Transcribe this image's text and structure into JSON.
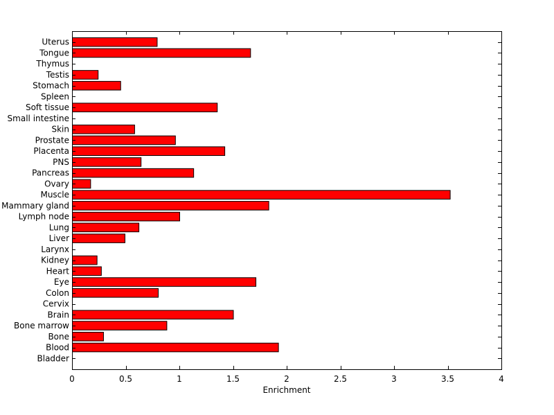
{
  "chart_data": {
    "type": "bar",
    "orientation": "horizontal",
    "title": "",
    "xlabel": "Enrichment",
    "ylabel": "",
    "xlim": [
      0,
      4
    ],
    "x_ticks": [
      "0",
      "0.5",
      "1",
      "1.5",
      "2",
      "2.5",
      "3",
      "3.5",
      "4"
    ],
    "categories": [
      "Bladder",
      "Blood",
      "Bone",
      "Bone marrow",
      "Brain",
      "Cervix",
      "Colon",
      "Eye",
      "Heart",
      "Kidney",
      "Larynx",
      "Liver",
      "Lung",
      "Lymph node",
      "Mammary gland",
      "Muscle",
      "Ovary",
      "Pancreas",
      "PNS",
      "Placenta",
      "Prostate",
      "Skin",
      "Small intestine",
      "Soft tissue",
      "Spleen",
      "Stomach",
      "Testis",
      "Thymus",
      "Tongue",
      "Uterus"
    ],
    "values": [
      0,
      1.92,
      0.29,
      0.88,
      1.5,
      0,
      0.8,
      1.71,
      0.27,
      0.23,
      0,
      0.49,
      0.62,
      1.0,
      1.83,
      3.52,
      0.17,
      1.13,
      0.64,
      1.42,
      0.96,
      0.58,
      0,
      1.35,
      0,
      0.45,
      0.24,
      0,
      1.66,
      0.79
    ],
    "bar_color": "#ff0000",
    "bar_edge_color": "#000000",
    "grid": false,
    "legend": "none"
  }
}
